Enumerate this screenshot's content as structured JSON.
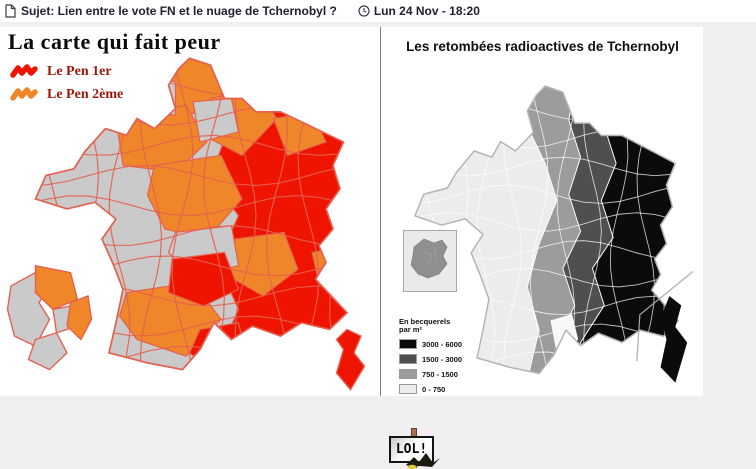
{
  "header": {
    "subject": "Sujet: Lien entre le vote FN et le nuage de Tchernobyl ?",
    "datetime": "Lun 24 Nov - 18:20"
  },
  "icons": {
    "header_left": "document-icon",
    "header_time": "clock-icon",
    "vote_legend": "squiggle-mark-icon"
  },
  "vote_map": {
    "title": "La carte qui fait peur",
    "legend": [
      {
        "label": "Le Pen 1er",
        "color": "#ee1400"
      },
      {
        "label": "Le Pen 2ème",
        "color": "#f0862a"
      }
    ],
    "colors": {
      "first": "#ee1400",
      "second": "#f0862a",
      "other": "#cacaca",
      "border": "#e4604f",
      "legend_text": "#9a170c"
    }
  },
  "fallout_map": {
    "title": "Les retombées radioactives de Tchernobyl",
    "legend_title": [
      "En becquerels",
      "par m²"
    ],
    "legend": [
      {
        "label": "3000 - 6000",
        "color": "#0b0b0b"
      },
      {
        "label": "1500 - 3000",
        "color": "#4f4f4f"
      },
      {
        "label": "750 - 1500",
        "color": "#9c9c9c"
      },
      {
        "label": "0 - 750",
        "color": "#ececec"
      }
    ],
    "border_color": "#ffffff",
    "outline_color": "#b5b5b5"
  },
  "smiley": {
    "sign_text": "LOL!"
  }
}
